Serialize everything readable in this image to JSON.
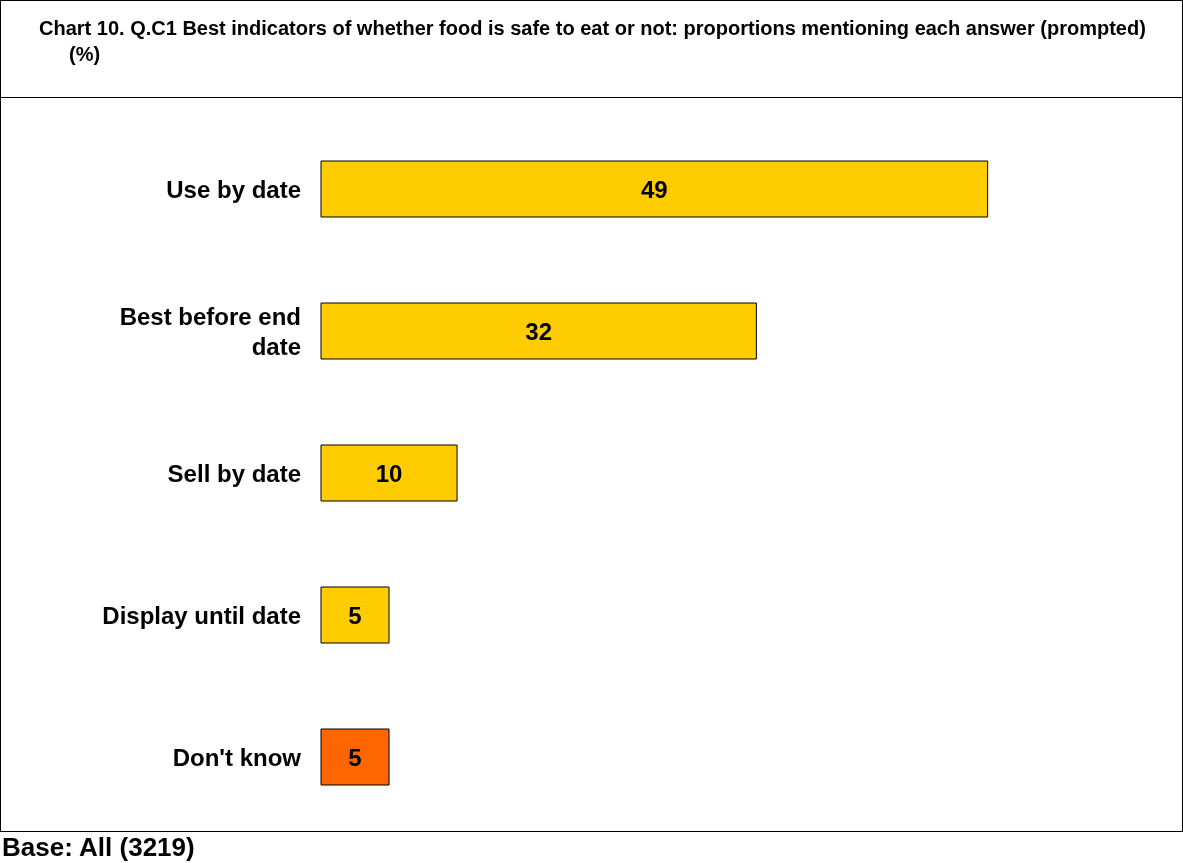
{
  "chart_data": {
    "type": "bar",
    "orientation": "horizontal",
    "title": "Chart 10.  Q.C1 Best indicators of whether food is safe to eat or not: proportions mentioning each answer (prompted) (%)",
    "categories": [
      "Use by date",
      "Best before end date",
      "Sell by date",
      "Display until date",
      "Don't know"
    ],
    "values": [
      49,
      32,
      10,
      5,
      5
    ],
    "colors": [
      "#ffcc00",
      "#ffcc00",
      "#ffcc00",
      "#ffcc00",
      "#ff6600"
    ],
    "data_labels": true,
    "annotations": [
      "Base: All (3219)"
    ]
  }
}
